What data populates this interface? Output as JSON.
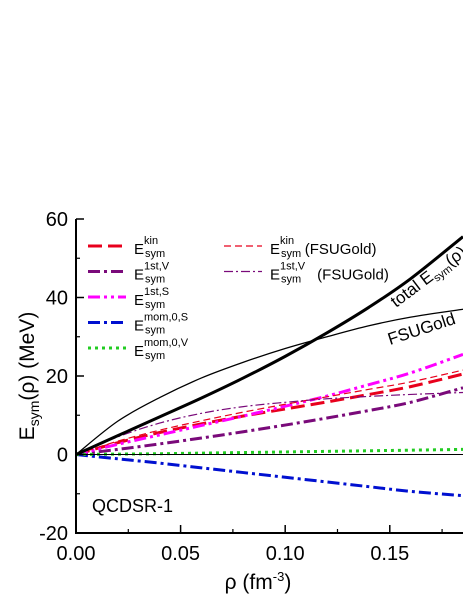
{
  "chart_data": {
    "type": "line",
    "xlabel": "ρ (fm⁻³)",
    "ylabel": "E_sym(ρ) (MeV)",
    "xlim": [
      0.0,
      0.185
    ],
    "ylim": [
      -20,
      60
    ],
    "xticks": [
      0.0,
      0.05,
      0.1,
      0.15
    ],
    "xtick_labels": [
      "0.00",
      "0.05",
      "0.10",
      "0.15"
    ],
    "yticks": [
      -20,
      0,
      20,
      40,
      60
    ],
    "ytick_labels": [
      "-20",
      "0",
      "20",
      "40",
      "60"
    ],
    "grid": false,
    "legend_position": "top-left",
    "annotations": [
      "QCDSR-1",
      "total E_sym(ρ)",
      "FSUGold"
    ],
    "series": [
      {
        "name": "E_sym^kin",
        "color": "#e8001c",
        "dash": "long-dash",
        "x": [
          0,
          0.02,
          0.04,
          0.06,
          0.08,
          0.1,
          0.12,
          0.14,
          0.16,
          0.185
        ],
        "y": [
          0,
          3.0,
          5.6,
          7.8,
          9.8,
          11.6,
          13.4,
          15.3,
          17.3,
          20.5
        ]
      },
      {
        "name": "E_sym^1st,V",
        "color": "#7a0a7a",
        "dash": "dash-dot",
        "x": [
          0,
          0.02,
          0.04,
          0.06,
          0.08,
          0.1,
          0.12,
          0.14,
          0.16,
          0.185
        ],
        "y": [
          0,
          1.3,
          2.7,
          4.2,
          5.8,
          7.5,
          9.3,
          11.2,
          13.3,
          17.0
        ]
      },
      {
        "name": "E_sym^1st,S",
        "color": "#ff00ff",
        "dash": "dash-dot-dot",
        "x": [
          0,
          0.02,
          0.04,
          0.06,
          0.08,
          0.1,
          0.12,
          0.14,
          0.16,
          0.185
        ],
        "y": [
          0,
          2.6,
          5.0,
          7.4,
          9.8,
          12.3,
          14.9,
          17.8,
          20.8,
          25.5
        ]
      },
      {
        "name": "E_sym^mom,0,S",
        "color": "#0010d0",
        "dash": "dash-dot",
        "x": [
          0,
          0.02,
          0.04,
          0.06,
          0.08,
          0.1,
          0.12,
          0.14,
          0.16,
          0.185
        ],
        "y": [
          0,
          -1.1,
          -2.2,
          -3.4,
          -4.6,
          -5.8,
          -7.0,
          -8.2,
          -9.4,
          -10.5
        ]
      },
      {
        "name": "E_sym^mom,0,V",
        "color": "#22cc22",
        "dash": "dotted",
        "x": [
          0,
          0.02,
          0.04,
          0.06,
          0.08,
          0.1,
          0.12,
          0.14,
          0.16,
          0.185
        ],
        "y": [
          0,
          0.1,
          0.2,
          0.35,
          0.5,
          0.65,
          0.8,
          0.95,
          1.1,
          1.3
        ]
      },
      {
        "name": "E_sym^kin (FSUGold)",
        "color": "#e8001c",
        "dash": "thin-dash",
        "x": [
          0,
          0.02,
          0.04,
          0.06,
          0.08,
          0.1,
          0.12,
          0.14,
          0.16,
          0.185
        ],
        "y": [
          0,
          3.4,
          6.2,
          8.6,
          10.8,
          12.8,
          14.7,
          16.6,
          18.5,
          21.5
        ]
      },
      {
        "name": "E_sym^1st,V (FSUGold)",
        "color": "#7a0a7a",
        "dash": "thin-dash-dot",
        "x": [
          0,
          0.02,
          0.04,
          0.06,
          0.08,
          0.1,
          0.12,
          0.14,
          0.16,
          0.185
        ],
        "y": [
          0,
          4.5,
          8.0,
          10.5,
          12.2,
          13.3,
          14.2,
          14.8,
          15.3,
          15.8
        ]
      },
      {
        "name": "total E_sym(ρ)",
        "color": "#000000",
        "dash": "solid-thick",
        "x": [
          0,
          0.02,
          0.04,
          0.06,
          0.08,
          0.1,
          0.12,
          0.14,
          0.16,
          0.185
        ],
        "y": [
          0,
          4.8,
          9.6,
          14.4,
          19.5,
          25.0,
          31.0,
          37.5,
          44.8,
          55.5
        ]
      },
      {
        "name": "FSUGold",
        "color": "#000000",
        "dash": "solid-thin",
        "x": [
          0,
          0.02,
          0.04,
          0.06,
          0.08,
          0.1,
          0.12,
          0.14,
          0.16,
          0.185
        ],
        "y": [
          0,
          8.5,
          14.5,
          19.5,
          23.5,
          27.0,
          30.0,
          32.8,
          35.0,
          37.0
        ]
      },
      {
        "name": "zero-line",
        "color": "#000000",
        "dash": "solid-hair",
        "x": [
          0,
          0.185
        ],
        "y": [
          0,
          0
        ]
      }
    ]
  },
  "legend": {
    "col1": [
      {
        "base": "E",
        "sup": "kin",
        "sub": "sym",
        "suffix": ""
      },
      {
        "base": "E",
        "sup": "1st,V",
        "sub": "sym",
        "suffix": ""
      },
      {
        "base": "E",
        "sup": "1st,S",
        "sub": "sym",
        "suffix": ""
      },
      {
        "base": "E",
        "sup": "mom,0,S",
        "sub": "sym",
        "suffix": ""
      },
      {
        "base": "E",
        "sup": "mom,0,V",
        "sub": "sym",
        "suffix": ""
      }
    ],
    "col2": [
      {
        "base": "E",
        "sup": "kin",
        "sub": "sym",
        "suffix": " (FSUGold)"
      },
      {
        "base": "E",
        "sup": "1st,V",
        "sub": "sym",
        "suffix": " (FSUGold)"
      }
    ]
  },
  "labels": {
    "model": "QCDSR-1",
    "total": "total E",
    "total_sub": "sym",
    "total_tail": "(ρ)",
    "fsu": "FSUGold",
    "x_title": "ρ (fm",
    "x_title_sup": "-3",
    "x_title_tail": ")",
    "y_title": "E",
    "y_title_sub": "sym",
    "y_title_tail": "(ρ) (MeV)"
  }
}
